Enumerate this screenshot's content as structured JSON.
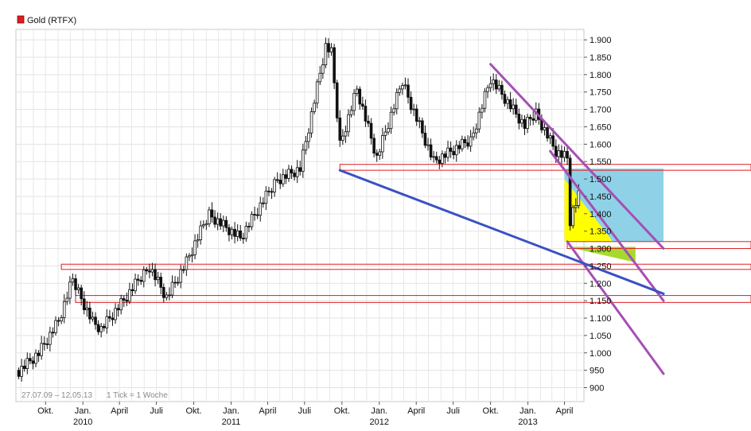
{
  "chart_data": {
    "type": "candlestick",
    "title": "Gold (RTFX)",
    "legend": {
      "label": "Gold (RTFX)",
      "color": "#e11b22",
      "position": "top-left"
    },
    "date_range_text": "27.07.09 – 12.05.13",
    "tick_note": "1 Tick = 1 Woche",
    "y_axis": {
      "side": "right",
      "ylim": [
        860,
        1930
      ],
      "ticks": [
        900,
        950,
        1000,
        1050,
        1100,
        1150,
        1200,
        1250,
        1300,
        1350,
        1400,
        1450,
        1500,
        1550,
        1600,
        1650,
        1700,
        1750,
        1800,
        1850,
        1900
      ],
      "tick_labels": [
        "900",
        "950",
        "1.000",
        "1.050",
        "1.100",
        "1.150",
        "1.200",
        "1.250",
        "1.300",
        "1.350",
        "1.400",
        "1.450",
        "1.500",
        "1.550",
        "1.600",
        "1.650",
        "1.700",
        "1.750",
        "1.800",
        "1.850",
        "1.900"
      ]
    },
    "x_axis": {
      "month_ticks": [
        {
          "label": "Okt.",
          "date": "2009-10"
        },
        {
          "label": "Jan.",
          "date": "2010-01"
        },
        {
          "label": "April",
          "date": "2010-04"
        },
        {
          "label": "Juli",
          "date": "2010-07"
        },
        {
          "label": "Okt.",
          "date": "2010-10"
        },
        {
          "label": "Jan.",
          "date": "2011-01"
        },
        {
          "label": "April",
          "date": "2011-04"
        },
        {
          "label": "Juli",
          "date": "2011-07"
        },
        {
          "label": "Okt.",
          "date": "2011-10"
        },
        {
          "label": "Jan.",
          "date": "2012-01"
        },
        {
          "label": "April",
          "date": "2012-04"
        },
        {
          "label": "Juli",
          "date": "2012-07"
        },
        {
          "label": "Okt.",
          "date": "2012-10"
        },
        {
          "label": "Jan.",
          "date": "2013-01"
        },
        {
          "label": "April",
          "date": "2013-04"
        }
      ],
      "year_labels": [
        {
          "label": "2010",
          "date": "2010-01"
        },
        {
          "label": "2011",
          "date": "2011-01"
        },
        {
          "label": "2012",
          "date": "2012-01"
        },
        {
          "label": "2013",
          "date": "2013-01"
        }
      ]
    },
    "price_path": [
      {
        "date": "2009-07-27",
        "close": 950
      },
      {
        "date": "2009-09-14",
        "close": 1000
      },
      {
        "date": "2009-11-02",
        "close": 1090
      },
      {
        "date": "2009-12-07",
        "close": 1210
      },
      {
        "date": "2010-01-25",
        "close": 1090
      },
      {
        "date": "2010-02-15",
        "close": 1070
      },
      {
        "date": "2010-04-12",
        "close": 1150
      },
      {
        "date": "2010-06-14",
        "close": 1250
      },
      {
        "date": "2010-07-26",
        "close": 1160
      },
      {
        "date": "2010-09-13",
        "close": 1260
      },
      {
        "date": "2010-11-08",
        "close": 1400
      },
      {
        "date": "2011-01-24",
        "close": 1330
      },
      {
        "date": "2011-04-25",
        "close": 1500
      },
      {
        "date": "2011-06-20",
        "close": 1530
      },
      {
        "date": "2011-08-22",
        "close": 1880
      },
      {
        "date": "2011-09-05",
        "close": 1860
      },
      {
        "date": "2011-09-26",
        "close": 1600
      },
      {
        "date": "2011-11-07",
        "close": 1760
      },
      {
        "date": "2011-12-26",
        "close": 1560
      },
      {
        "date": "2012-02-27",
        "close": 1780
      },
      {
        "date": "2012-05-14",
        "close": 1550
      },
      {
        "date": "2012-08-13",
        "close": 1610
      },
      {
        "date": "2012-10-01",
        "close": 1790
      },
      {
        "date": "2012-12-24",
        "close": 1650
      },
      {
        "date": "2013-01-21",
        "close": 1690
      },
      {
        "date": "2013-03-11",
        "close": 1580
      },
      {
        "date": "2013-04-08",
        "close": 1560
      },
      {
        "date": "2013-04-15",
        "close": 1380
      },
      {
        "date": "2013-04-22",
        "close": 1410
      },
      {
        "date": "2013-05-06",
        "close": 1450
      }
    ],
    "support_zones": [
      {
        "from_date": "2011-09-26",
        "low": 1525,
        "high": 1542,
        "color": "#e11b22"
      },
      {
        "from_date": "2013-04-08",
        "low": 1300,
        "high": 1320,
        "color": "#e11b22"
      },
      {
        "from_date": "2009-11-09",
        "low": 1240,
        "high": 1255,
        "color": "#e11b22"
      },
      {
        "from_date": "2009-12-14",
        "low": 1145,
        "high": 1165,
        "color": "#e11b22"
      }
    ],
    "trendlines": [
      {
        "name": "channel-upper",
        "color": "#a64fb5",
        "from": {
          "date": "2012-10-01",
          "value": 1830
        },
        "to": {
          "date": "2013-12-01",
          "value": 1300
        }
      },
      {
        "name": "channel-middle",
        "color": "#a64fb5",
        "from": {
          "date": "2013-02-25",
          "value": 1580
        },
        "to": {
          "date": "2013-12-01",
          "value": 1150
        }
      },
      {
        "name": "channel-lower",
        "color": "#a64fb5",
        "from": {
          "date": "2013-04-08",
          "value": 1320
        },
        "to": {
          "date": "2013-12-01",
          "value": 940
        }
      },
      {
        "name": "support-line",
        "color": "#3951c4",
        "from": {
          "date": "2011-09-26",
          "value": 1525
        },
        "to": {
          "date": "2013-12-01",
          "value": 1170
        }
      }
    ],
    "shaded_regions": [
      {
        "color": "#ffff00",
        "points": [
          {
            "date": "2013-04-01",
            "value": 1500
          },
          {
            "date": "2013-07-29",
            "value": 1320
          },
          {
            "date": "2013-04-01",
            "value": 1320
          }
        ]
      },
      {
        "color": "#8fd1e6",
        "points": [
          {
            "date": "2013-04-01",
            "value": 1530
          },
          {
            "date": "2013-12-01",
            "value": 1530
          },
          {
            "date": "2013-12-01",
            "value": 1320
          },
          {
            "date": "2013-07-29",
            "value": 1320
          },
          {
            "date": "2013-04-01",
            "value": 1500
          }
        ]
      },
      {
        "color": "#a6d92e",
        "points": [
          {
            "date": "2013-04-08",
            "value": 1305
          },
          {
            "date": "2013-09-23",
            "value": 1305
          },
          {
            "date": "2013-09-23",
            "value": 1260
          }
        ]
      }
    ],
    "grid": true
  }
}
